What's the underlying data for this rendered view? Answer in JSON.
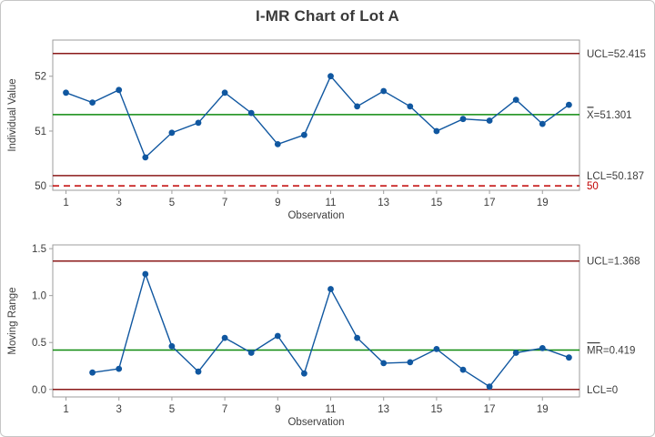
{
  "title": "I-MR Chart of Lot A",
  "colors": {
    "series": "#1057a0",
    "center_line": "#0e8a0e",
    "control_limit": "#8b1a1a",
    "reference_line": "#c00000",
    "frame": "#9e9e9e",
    "text": "#3d3d3d"
  },
  "chart_data": [
    {
      "type": "line",
      "name": "individuals-chart",
      "xlabel": "Observation",
      "ylabel": "Individual Value",
      "x": [
        1,
        2,
        3,
        4,
        5,
        6,
        7,
        8,
        9,
        10,
        11,
        12,
        13,
        14,
        15,
        16,
        17,
        18,
        19,
        20
      ],
      "values": [
        51.7,
        51.52,
        51.75,
        50.52,
        50.97,
        51.15,
        51.7,
        51.33,
        50.76,
        50.93,
        52.0,
        51.45,
        51.73,
        51.45,
        51.0,
        51.22,
        51.19,
        51.57,
        51.13,
        51.48
      ],
      "xticks": [
        1,
        3,
        5,
        7,
        9,
        11,
        13,
        15,
        17,
        19
      ],
      "yticks": [
        50,
        51,
        52
      ],
      "ytick_labels": [
        "50",
        "51",
        "52"
      ],
      "xlim": [
        0.5,
        20.4
      ],
      "ylim": [
        49.92,
        52.66
      ],
      "legend_position": "right",
      "grid": false,
      "lines": [
        {
          "name": "ucl",
          "value": 52.415,
          "color": "control_limit",
          "label": "UCL=52.415",
          "label_color": "text"
        },
        {
          "name": "center",
          "value": 51.301,
          "color": "center_line",
          "label": "X=51.301",
          "bar_over": 1,
          "label_color": "text"
        },
        {
          "name": "lcl",
          "value": 50.187,
          "color": "control_limit",
          "label": "LCL=50.187",
          "label_color": "text"
        },
        {
          "name": "reference",
          "value": 50,
          "color": "reference_line",
          "dash": true,
          "label": "50",
          "label_color": "reference_line"
        }
      ]
    },
    {
      "type": "line",
      "name": "moving-range-chart",
      "xlabel": "Observation",
      "ylabel": "Moving Range",
      "x": [
        2,
        3,
        4,
        5,
        6,
        7,
        8,
        9,
        10,
        11,
        12,
        13,
        14,
        15,
        16,
        17,
        18,
        19,
        20
      ],
      "values": [
        0.18,
        0.22,
        1.23,
        0.46,
        0.19,
        0.55,
        0.39,
        0.57,
        0.17,
        1.07,
        0.55,
        0.28,
        0.29,
        0.43,
        0.21,
        0.03,
        0.39,
        0.44,
        0.34
      ],
      "xticks": [
        1,
        3,
        5,
        7,
        9,
        11,
        13,
        15,
        17,
        19
      ],
      "yticks": [
        0,
        0.5,
        1,
        1.5
      ],
      "ytick_labels": [
        "0.0",
        "0.5",
        "1.0",
        "1.5"
      ],
      "xlim": [
        0.5,
        20.4
      ],
      "ylim": [
        -0.08,
        1.54
      ],
      "legend_position": "right",
      "grid": false,
      "lines": [
        {
          "name": "ucl",
          "value": 1.368,
          "color": "control_limit",
          "label": "UCL=1.368",
          "label_color": "text"
        },
        {
          "name": "center",
          "value": 0.419,
          "color": "center_line",
          "label": "MR=0.419",
          "bar_over": 2,
          "label_color": "text"
        },
        {
          "name": "lcl",
          "value": 0,
          "color": "control_limit",
          "label": "LCL=0",
          "label_color": "text"
        }
      ]
    }
  ]
}
